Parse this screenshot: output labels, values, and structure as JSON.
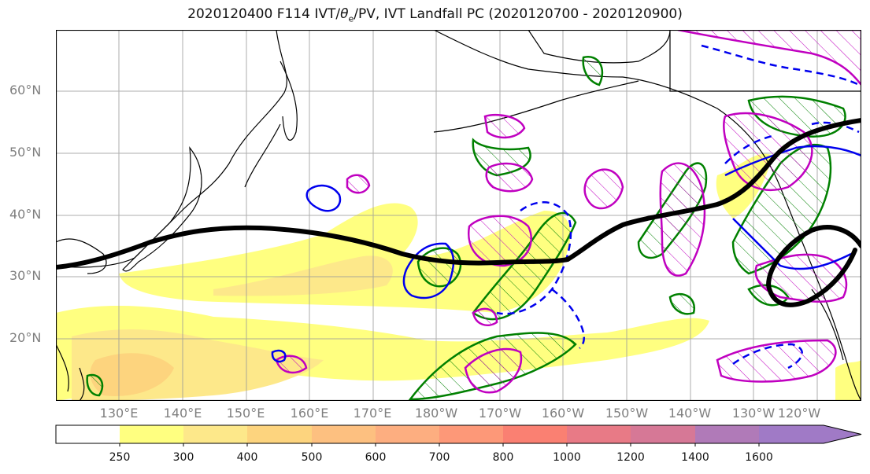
{
  "title_prefix": "2020120400 F114 IVT/",
  "title_theta": "θ",
  "title_sub": "e",
  "title_suffix": "/PV, IVT Landfall PC (2020120700 - 2020120900)",
  "colors": {
    "background": "#ffffff",
    "coast": "#000000",
    "grid": "#999999",
    "jet_line": "#000000",
    "green_contour": "#008000",
    "magenta_contour": "#c000c0",
    "blue_contour": "#0000ee",
    "ivt_shading": [
      "#ffffff",
      "#ffff80",
      "#fde88a",
      "#fdd47e",
      "#fdc080",
      "#fdae80",
      "#fd9878",
      "#fa8072",
      "#e87a86",
      "#d67896",
      "#b07ab8",
      "#a07ac6"
    ]
  },
  "lat_labels": [
    "60°N",
    "50°N",
    "40°N",
    "30°N",
    "20°N"
  ],
  "lon_labels": [
    "130°E",
    "140°E",
    "150°E",
    "160°E",
    "170°E",
    "180°W",
    "170°W",
    "160°W",
    "150°W",
    "140°W",
    "130°W",
    "120°W"
  ],
  "colorbar": {
    "levels": [
      "250",
      "300",
      "400",
      "500",
      "600",
      "700",
      "800",
      "1000",
      "1200",
      "1400",
      "1600"
    ],
    "extend": "max"
  },
  "map_extent": {
    "lon_min": 120,
    "lon_max": 247,
    "lat_min": 10,
    "lat_max": 70
  }
}
